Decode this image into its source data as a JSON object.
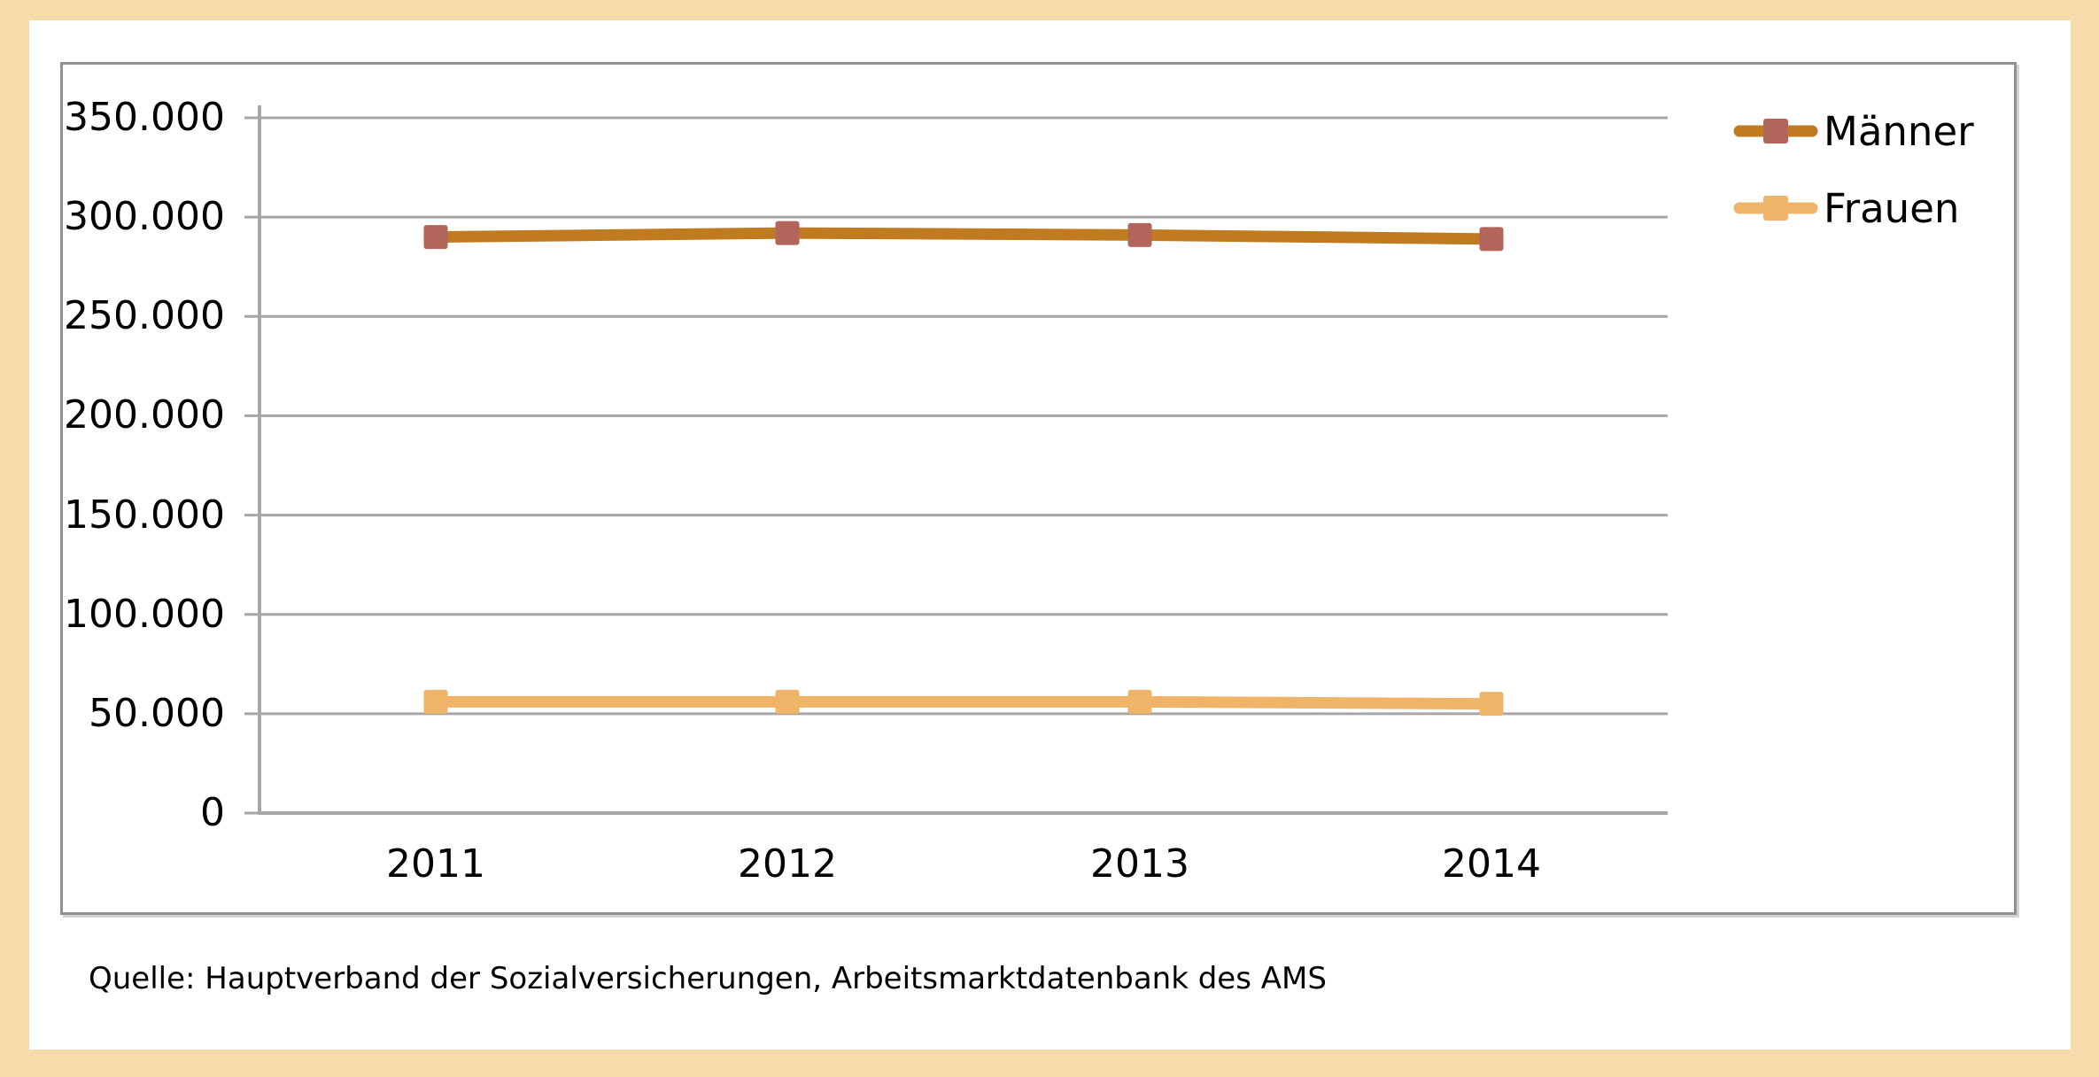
{
  "source_note": "Quelle: Hauptverband der Sozialversicherungen, Arbeitsmarktdatenbank des AMS",
  "colors": {
    "page_background": "#f5dcaa",
    "sheet_background": "#ffffff",
    "frame_border": "#919191",
    "gridline": "#a6a6a6",
    "axis": "#a0a0a0",
    "label_text": "#000000",
    "maenner_line": "#c07a1f",
    "maenner_marker": "#b2655a",
    "frauen_line": "#f0b468",
    "frauen_marker": "#f0b468"
  },
  "chart_data": {
    "type": "line",
    "title": "",
    "xlabel": "",
    "ylabel": "",
    "categories": [
      "2011",
      "2012",
      "2013",
      "2014"
    ],
    "series": [
      {
        "name": "Männer",
        "values": [
          290000,
          292000,
          291000,
          289000
        ],
        "line_color": "#c07a1f",
        "marker_color": "#b2655a"
      },
      {
        "name": "Frauen",
        "values": [
          56000,
          56000,
          56000,
          55000
        ],
        "line_color": "#f0b468",
        "marker_color": "#f0b468"
      }
    ],
    "ylim": [
      0,
      350000
    ],
    "ytick_step": 50000,
    "ytick_labels": [
      "0",
      "50.000",
      "100.000",
      "150.000",
      "200.000",
      "250.000",
      "300.000",
      "350.000"
    ],
    "grid": true,
    "marker_shape": "square",
    "legend_position": "top-right"
  }
}
